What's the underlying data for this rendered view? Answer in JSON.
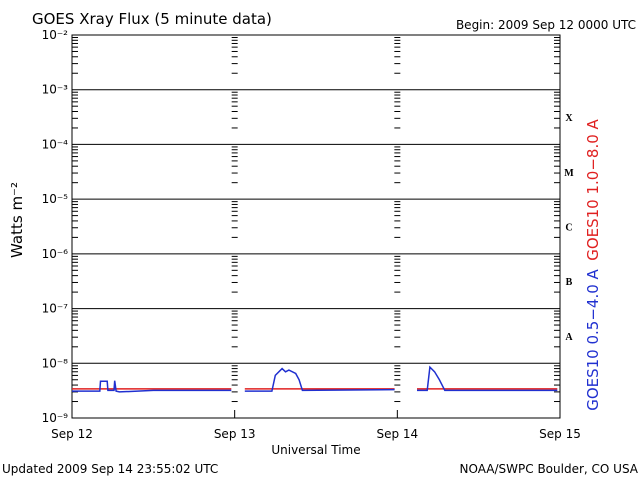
{
  "chart_data": {
    "type": "line",
    "title": "GOES Xray Flux (5 minute data)",
    "subtitle": "Begin:  2009 Sep 12 0000 UTC",
    "y_label": "Watts m⁻²",
    "x_label": "Universal Time",
    "footer_left": "Updated 2009 Sep 14 23:55:02 UTC",
    "footer_right": "NOAA/SWPC Boulder, CO USA",
    "yscale": "log",
    "grid": true,
    "ylim": [
      1e-09,
      0.01
    ],
    "yticks": [
      {
        "value": 1e-09,
        "label": "10⁻⁹"
      },
      {
        "value": 1e-08,
        "label": "10⁻⁸"
      },
      {
        "value": 1e-07,
        "label": "10⁻⁷"
      },
      {
        "value": 1e-06,
        "label": "10⁻⁶"
      },
      {
        "value": 1e-05,
        "label": "10⁻⁵"
      },
      {
        "value": 0.0001,
        "label": "10⁻⁴"
      },
      {
        "value": 0.001,
        "label": "10⁻³"
      },
      {
        "value": 0.01,
        "label": "10⁻²"
      }
    ],
    "xlim": [
      0,
      72
    ],
    "xticks": [
      {
        "value": 0,
        "label": "Sep 12"
      },
      {
        "value": 24,
        "label": "Sep 13"
      },
      {
        "value": 48,
        "label": "Sep 14"
      },
      {
        "value": 72,
        "label": "Sep 15"
      }
    ],
    "flare_classes": [
      {
        "label": "A",
        "value": 1e-08
      },
      {
        "label": "B",
        "value": 1e-07
      },
      {
        "label": "C",
        "value": 1e-06
      },
      {
        "label": "M",
        "value": 1e-05
      },
      {
        "label": "X",
        "value": 0.0001
      }
    ],
    "series": [
      {
        "name": "GOES10 1.0−8.0 A",
        "color": "#e02020",
        "x": [
          0,
          23.5,
          24,
          25.5,
          47.6,
          48,
          50.9,
          71.6
        ],
        "values": [
          3.4e-09,
          3.4e-09,
          null,
          3.4e-09,
          3.4e-09,
          null,
          3.4e-09,
          3.4e-09
        ]
      },
      {
        "name": "GOES10 0.5−4.0 A",
        "color": "#2030d0",
        "x": [
          0,
          4.1,
          4.2,
          5.2,
          5.3,
          6.2,
          6.3,
          6.5,
          7.0,
          12,
          23.5,
          24,
          25.5,
          29.5,
          30,
          31,
          31.5,
          32,
          33,
          33.5,
          34,
          47.6,
          48,
          50.9,
          52.4,
          52.8,
          53.5,
          54.2,
          55,
          71.6
        ],
        "values": [
          3.1e-09,
          3.1e-09,
          4.7e-09,
          4.7e-09,
          3.2e-09,
          3.2e-09,
          4.8e-09,
          3.1e-09,
          3e-09,
          3.2e-09,
          3.2e-09,
          null,
          3.1e-09,
          3.1e-09,
          6e-09,
          8e-09,
          7e-09,
          7.5e-09,
          6.5e-09,
          5e-09,
          3.2e-09,
          3.3e-09,
          null,
          3.2e-09,
          3.2e-09,
          8.5e-09,
          7e-09,
          5e-09,
          3.2e-09,
          3.2e-09
        ]
      }
    ]
  }
}
